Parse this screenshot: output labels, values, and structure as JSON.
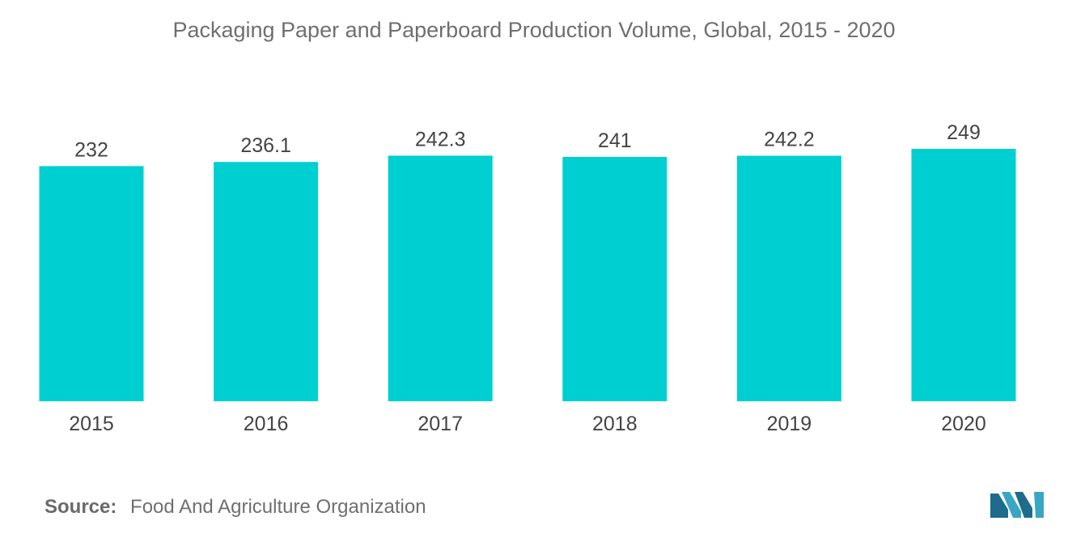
{
  "title": "Packaging Paper and Paperboard Production Volume, Global, 2015 - 2020",
  "source": {
    "label": "Source:",
    "text": "Food And Agriculture Organization"
  },
  "colors": {
    "bar": "#00CFD1",
    "text": "#444444",
    "logo_dark": "#1f6b8c",
    "logo_light": "#3aa6c4"
  },
  "chart_data": {
    "type": "bar",
    "title": "Packaging Paper and Paperboard Production Volume, Global, 2015 - 2020",
    "categories": [
      "2015",
      "2016",
      "2017",
      "2018",
      "2019",
      "2020"
    ],
    "values": [
      232,
      236.1,
      242.3,
      241,
      242.2,
      249
    ],
    "value_labels": [
      "232",
      "236.1",
      "242.3",
      "241",
      "242.2",
      "249"
    ],
    "xlabel": "",
    "ylabel": "",
    "ylim": [
      0,
      249
    ],
    "grid": false,
    "legend": "none"
  }
}
